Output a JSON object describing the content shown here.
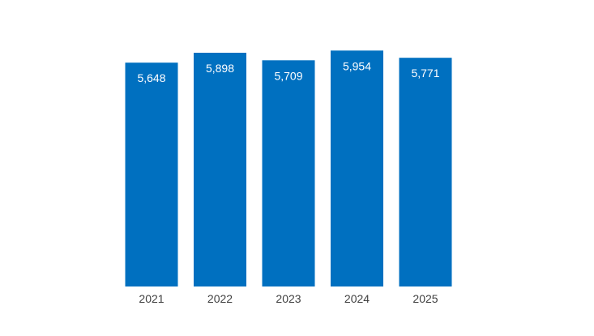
{
  "chart_data": {
    "type": "bar",
    "categories": [
      "2021",
      "2022",
      "2023",
      "2024",
      "2025"
    ],
    "values": [
      5648,
      5898,
      5709,
      5954,
      5771
    ],
    "data_labels": [
      "5,648",
      "5,898",
      "5,709",
      "5,954",
      "5,771"
    ],
    "title": "",
    "xlabel": "",
    "ylabel": "",
    "ylim": [
      0,
      6000
    ],
    "grid": false,
    "legend": "none",
    "bar_color": "#0070C0",
    "label_color": "#FFFFFF",
    "tick_color": "#404040"
  }
}
